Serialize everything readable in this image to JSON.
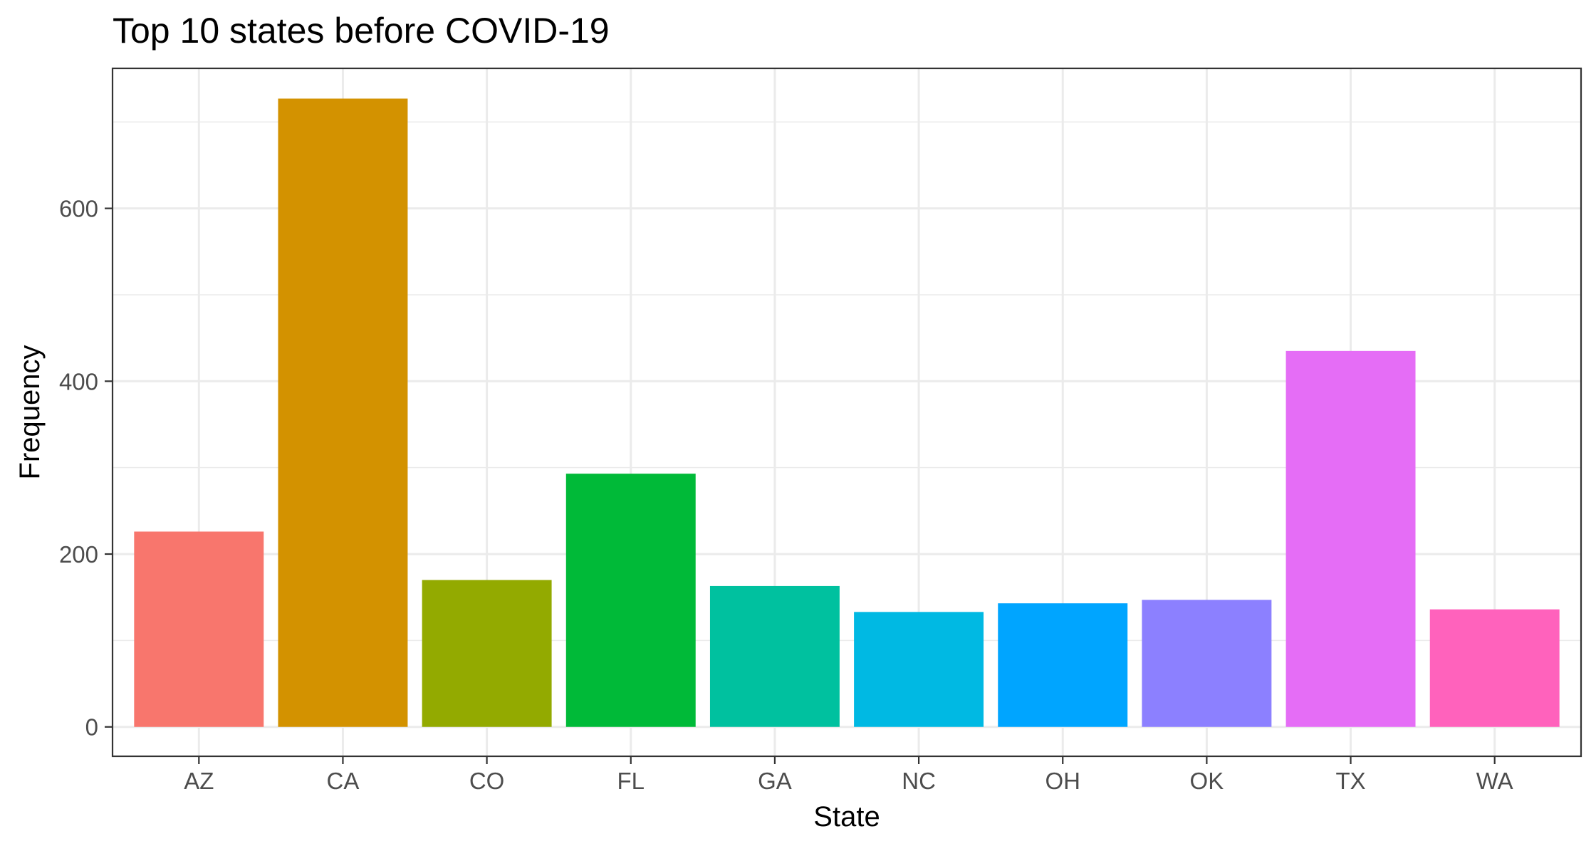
{
  "chart_data": {
    "type": "bar",
    "title": "Top 10 states before COVID-19",
    "xlabel": "State",
    "ylabel": "Frequency",
    "categories": [
      "AZ",
      "CA",
      "CO",
      "FL",
      "GA",
      "NC",
      "OH",
      "OK",
      "TX",
      "WA"
    ],
    "values": [
      226,
      727,
      170,
      293,
      163,
      133,
      143,
      147,
      435,
      136
    ],
    "colors": [
      "#F8766D",
      "#D39200",
      "#93AA00",
      "#00BA38",
      "#00C19F",
      "#00B9E3",
      "#00A5FF",
      "#8C80FF",
      "#E56DF6",
      "#FF62BC"
    ],
    "yticks": [
      0,
      200,
      400,
      600
    ],
    "ytick_labels": [
      "0",
      "200",
      "400",
      "600"
    ],
    "ylim": [
      -34,
      762
    ],
    "grid": true,
    "legend": "none"
  }
}
